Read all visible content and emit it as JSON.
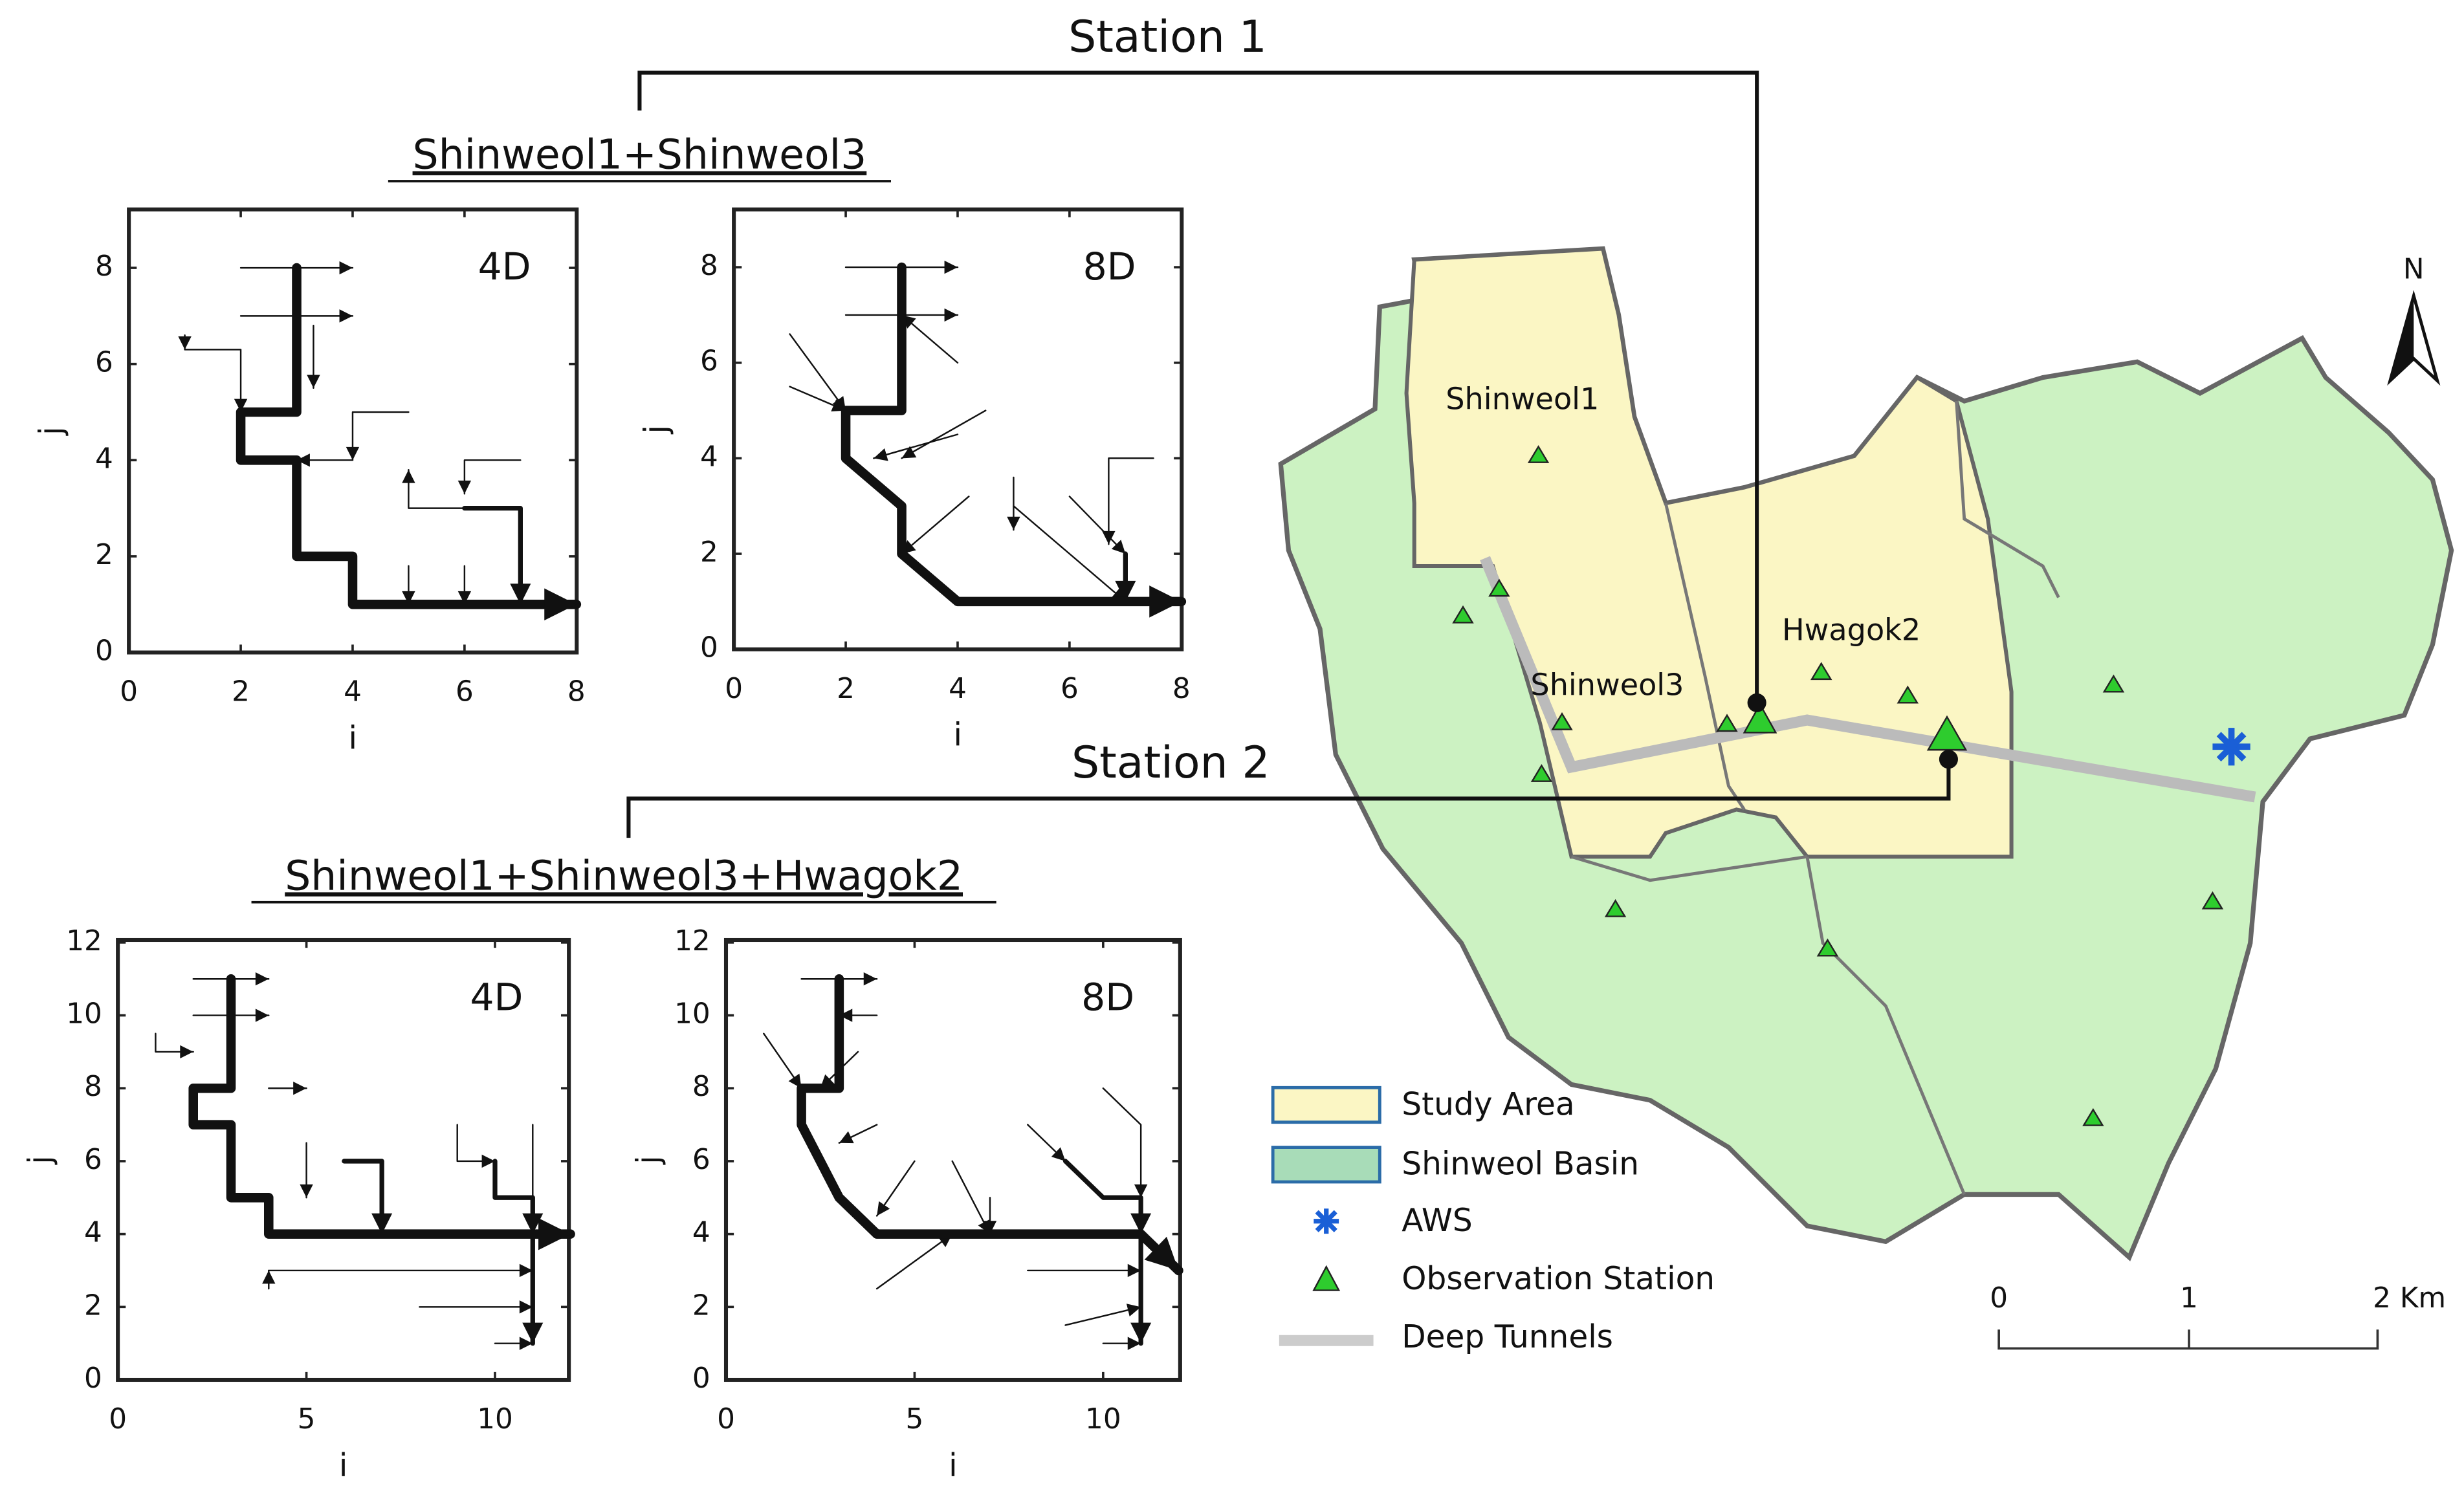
{
  "connectors": {
    "station1": "Station 1",
    "station2": "Station 2"
  },
  "groups": [
    {
      "title": "Shinweol1+Shinweol3",
      "plots": [
        {
          "label": "4D",
          "xticks": [
            0,
            2,
            4,
            6,
            8
          ],
          "yticks": [
            0,
            2,
            4,
            6,
            8
          ],
          "xlabel": "i",
          "ylabel": "j"
        },
        {
          "label": "8D",
          "xticks": [
            0,
            2,
            4,
            6,
            8
          ],
          "yticks": [
            0,
            2,
            4,
            6,
            8
          ],
          "xlabel": "i",
          "ylabel": "j"
        }
      ]
    },
    {
      "title": "Shinweol1+Shinweol3+Hwagok2",
      "plots": [
        {
          "label": "4D",
          "xticks": [
            0,
            5,
            10
          ],
          "yticks": [
            0,
            2,
            4,
            6,
            8,
            10,
            12
          ],
          "xlabel": "i",
          "ylabel": "j"
        },
        {
          "label": "8D",
          "xticks": [
            0,
            5,
            10
          ],
          "yticks": [
            0,
            2,
            4,
            6,
            8,
            10,
            12
          ],
          "xlabel": "i",
          "ylabel": "j"
        }
      ]
    }
  ],
  "map": {
    "labels": [
      "Shinweol1",
      "Shinweol3",
      "Hwagok2"
    ],
    "north": "N",
    "legend": [
      "Study Area",
      "Shinweol Basin",
      "AWS",
      "Observation Station",
      "Deep Tunnels"
    ],
    "scale": [
      "0",
      "1",
      "2 Km"
    ]
  }
}
